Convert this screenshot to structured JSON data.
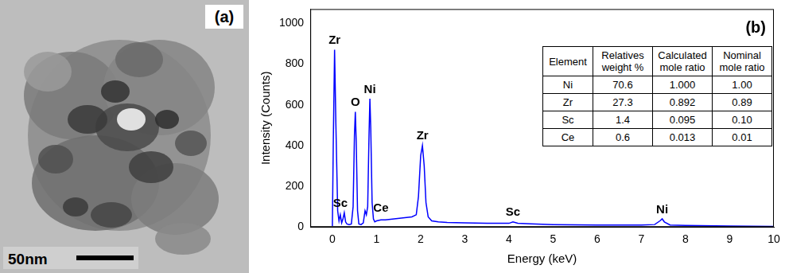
{
  "panel_a": {
    "label": "(a)",
    "scale_bar": "50nm"
  },
  "chart_data": {
    "type": "line",
    "panel_label": "(b)",
    "x_label": "Energy (keV)",
    "y_label": "Intensity (Counts)",
    "x": [
      0,
      0.02,
      0.05,
      0.08,
      0.12,
      0.15,
      0.18,
      0.21,
      0.24,
      0.27,
      0.3,
      0.33,
      0.38,
      0.43,
      0.47,
      0.5,
      0.52,
      0.54,
      0.57,
      0.6,
      0.65,
      0.7,
      0.74,
      0.77,
      0.8,
      0.83,
      0.85,
      0.87,
      0.9,
      0.93,
      0.96,
      1.0,
      1.1,
      1.2,
      1.4,
      1.6,
      1.8,
      1.9,
      1.95,
      2.0,
      2.04,
      2.08,
      2.12,
      2.17,
      2.25,
      2.4,
      2.6,
      3.0,
      3.5,
      4.0,
      4.09,
      4.2,
      4.5,
      5.0,
      6.0,
      7.0,
      7.3,
      7.42,
      7.47,
      7.52,
      7.65,
      8.0,
      9.0,
      10.0
    ],
    "values": [
      5,
      400,
      870,
      500,
      80,
      30,
      60,
      20,
      40,
      70,
      25,
      15,
      12,
      15,
      100,
      450,
      565,
      420,
      80,
      15,
      12,
      20,
      80,
      60,
      100,
      450,
      630,
      480,
      120,
      40,
      25,
      30,
      35,
      35,
      40,
      45,
      50,
      60,
      150,
      350,
      400,
      300,
      120,
      50,
      30,
      25,
      22,
      20,
      18,
      18,
      25,
      18,
      15,
      12,
      10,
      10,
      12,
      30,
      40,
      25,
      10,
      8,
      5,
      3
    ],
    "color": "#0000ff",
    "xlim": [
      -0.5,
      10
    ],
    "xticks": [
      0,
      1,
      2,
      3,
      4,
      5,
      6,
      7,
      8,
      9,
      10
    ],
    "ylim": [
      0,
      1070
    ],
    "yticks": [
      0,
      200,
      400,
      600,
      800,
      1000
    ],
    "grid": false,
    "annotations": [
      {
        "text": "Zr",
        "x": 0.05,
        "y": 870
      },
      {
        "text": "Sc",
        "x": 0.18,
        "y": 70
      },
      {
        "text": "O",
        "x": 0.52,
        "y": 565
      },
      {
        "text": "Ni",
        "x": 0.85,
        "y": 630
      },
      {
        "text": "Ce",
        "x": 1.1,
        "y": 45
      },
      {
        "text": "Zr",
        "x": 2.04,
        "y": 400
      },
      {
        "text": "Sc",
        "x": 4.09,
        "y": 25
      },
      {
        "text": "Ni",
        "x": 7.47,
        "y": 40
      }
    ],
    "table": {
      "columns": [
        "Element",
        "Relatives weight %",
        "Calculated mole ratio",
        "Nominal mole ratio"
      ],
      "rows": [
        [
          "Ni",
          "70.6",
          "1.000",
          "1.00"
        ],
        [
          "Zr",
          "27.3",
          "0.892",
          "0.89"
        ],
        [
          "Sc",
          "1.4",
          "0.095",
          "0.10"
        ],
        [
          "Ce",
          "0.6",
          "0.013",
          "0.01"
        ]
      ]
    }
  }
}
